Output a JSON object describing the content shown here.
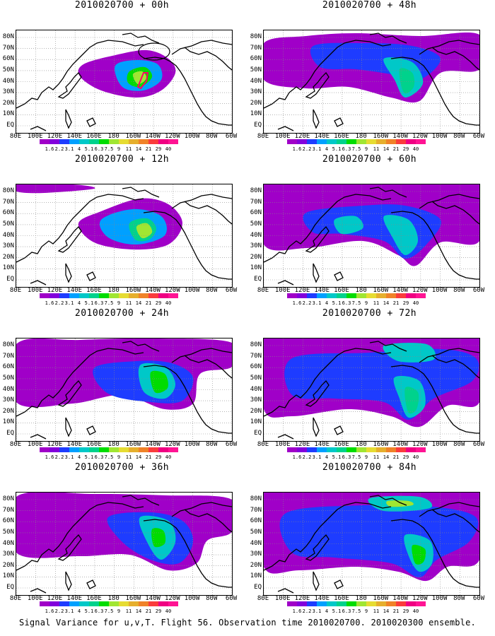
{
  "panels": [
    {
      "title": "2010020700 + 00h"
    },
    {
      "title": "2010020700 + 48h"
    },
    {
      "title": "2010020700 + 12h"
    },
    {
      "title": "2010020700 + 60h"
    },
    {
      "title": "2010020700 + 24h"
    },
    {
      "title": "2010020700 + 72h"
    },
    {
      "title": "2010020700 + 36h"
    },
    {
      "title": "2010020700 + 84h"
    }
  ],
  "lat_labels": [
    "80N",
    "70N",
    "60N",
    "50N",
    "40N",
    "30N",
    "20N",
    "10N",
    "EQ"
  ],
  "lon_labels": [
    "80E",
    "100E",
    "120E",
    "140E",
    "160E",
    "180",
    "160W",
    "140W",
    "120W",
    "100W",
    "80W",
    "60W"
  ],
  "colorbar": {
    "labels": [
      "1.6",
      "2.2",
      "3.1",
      "4",
      "5.1",
      "6.3",
      "7.5",
      "9",
      "11",
      "14",
      "21",
      "29",
      "40"
    ],
    "colors": [
      "#a000c8",
      "#8200dc",
      "#1e3cff",
      "#00a0ff",
      "#00c8c8",
      "#00d28c",
      "#00dc00",
      "#a0e632",
      "#e6dc32",
      "#e6af2d",
      "#f08228",
      "#fa3c3c",
      "#f00082"
    ]
  },
  "caption": "Signal Variance for u,v,T. Flight 56. Observation time 2010020700. 2010020300 ensemble."
}
